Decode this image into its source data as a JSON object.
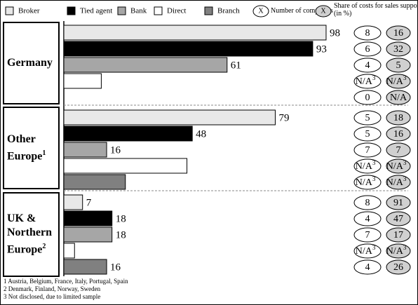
{
  "chart_data": {
    "type": "bar",
    "orientation": "horizontal",
    "categories": [
      "Germany",
      "Other Europe",
      "UK & Northern Europe"
    ],
    "category_notes": [
      null,
      "1",
      "2"
    ],
    "xlim": [
      0,
      100
    ],
    "series": [
      {
        "name": "Broker",
        "color": "#e8e8e8",
        "values": [
          98,
          79,
          7
        ],
        "value_labels": [
          "98",
          "79",
          "7"
        ],
        "companies": [
          8,
          5,
          8
        ],
        "cost_share": [
          16,
          18,
          91
        ]
      },
      {
        "name": "Tied agent",
        "color": "#000000",
        "values": [
          93,
          48,
          18
        ],
        "value_labels": [
          "93",
          "48",
          "18"
        ],
        "companies": [
          6,
          5,
          4
        ],
        "cost_share": [
          32,
          16,
          47
        ]
      },
      {
        "name": "Bank",
        "color": "#a6a6a6",
        "values": [
          61,
          16,
          18
        ],
        "value_labels": [
          "61",
          "16",
          "18"
        ],
        "companies": [
          4,
          7,
          7
        ],
        "cost_share": [
          5,
          7,
          17
        ]
      },
      {
        "name": "Direct",
        "color": "#ffffff",
        "values": [
          14,
          46,
          4
        ],
        "value_labels": [
          null,
          null,
          null
        ],
        "companies": [
          {
            "label": "N/A",
            "note": "3"
          },
          {
            "label": "N/A",
            "note": "3"
          },
          {
            "label": "N/A",
            "note": "3"
          }
        ],
        "cost_share": [
          {
            "label": "N/A",
            "note": "3"
          },
          {
            "label": "N/A",
            "note": "3"
          },
          {
            "label": "N/A",
            "note": "3"
          }
        ]
      },
      {
        "name": "Branch",
        "color": "#808080",
        "values": [
          null,
          23,
          16
        ],
        "value_labels": [
          null,
          null,
          "16"
        ],
        "companies": [
          0,
          {
            "label": "N/A",
            "note": "3"
          },
          4
        ],
        "cost_share": [
          {
            "label": "N/A"
          },
          {
            "label": "N/A",
            "note": "3"
          },
          26
        ]
      }
    ],
    "legend_marker": "X",
    "companies_label": "Number of companies",
    "cost_share_label": "Share of costs for sales support (in %)",
    "footnotes": [
      "1 Austria, Belgium, France, Italy, Portugal, Spain",
      "2 Denmark, Finland, Norway, Sweden",
      "3 Not disclosed, due to limited sample"
    ]
  }
}
